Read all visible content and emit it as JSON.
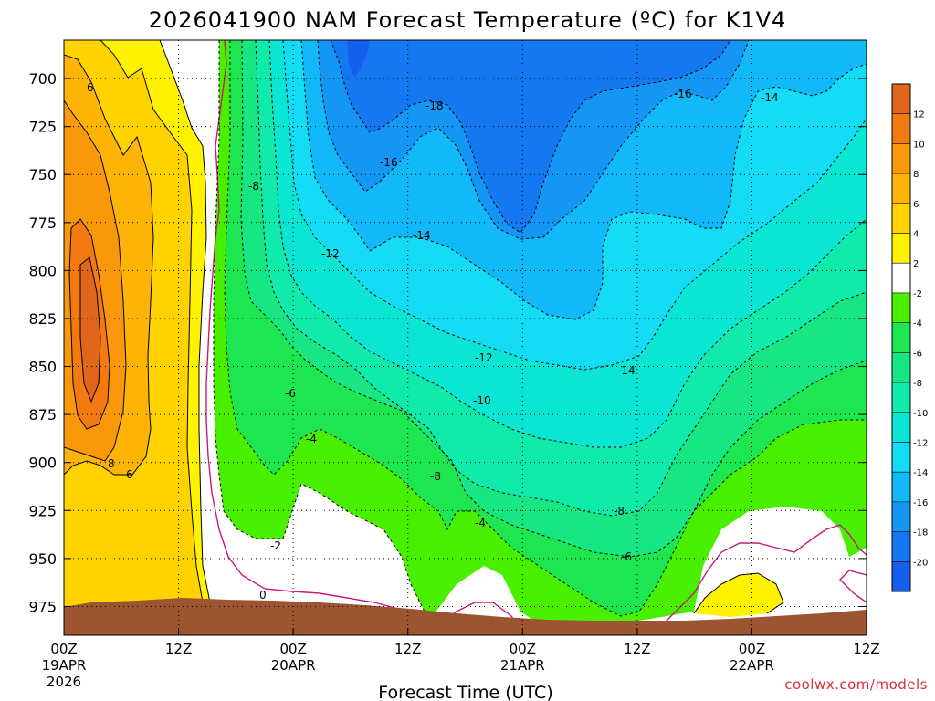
{
  "chart_data": {
    "type": "heatmap",
    "title": "2026041900 NAM Forecast Temperature (ºC) for K1V4",
    "xlabel": "Forecast Time (UTC)",
    "ylabel": "",
    "credit": "coolwx.com/models",
    "x_ticks": [
      {
        "hour": 0,
        "line1": "00Z",
        "line2": "19APR",
        "line3": "2026"
      },
      {
        "hour": 12,
        "line1": "12Z",
        "line2": "",
        "line3": ""
      },
      {
        "hour": 24,
        "line1": "00Z",
        "line2": "20APR",
        "line3": ""
      },
      {
        "hour": 36,
        "line1": "12Z",
        "line2": "",
        "line3": ""
      },
      {
        "hour": 48,
        "line1": "00Z",
        "line2": "21APR",
        "line3": ""
      },
      {
        "hour": 60,
        "line1": "12Z",
        "line2": "",
        "line3": ""
      },
      {
        "hour": 72,
        "line1": "00Z",
        "line2": "22APR",
        "line3": ""
      },
      {
        "hour": 84,
        "line1": "12Z",
        "line2": "",
        "line3": ""
      }
    ],
    "xlim_hours": [
      0,
      84
    ],
    "y_ticks": [
      700,
      725,
      750,
      775,
      800,
      825,
      850,
      875,
      900,
      925,
      950,
      975
    ],
    "ylim_hPa": [
      680,
      990
    ],
    "y_scale": "pressure",
    "grid": "dotted",
    "colorbar": {
      "position": "right",
      "labels": [
        "12",
        "10",
        "8",
        "6",
        "4",
        "2",
        "-2",
        "-4",
        "-6",
        "-8",
        "-10",
        "-12",
        "-14",
        "-16",
        "-18",
        "-20"
      ],
      "bins": [
        {
          "range": [
            12,
            14
          ],
          "color": "#e0661b"
        },
        {
          "range": [
            10,
            12
          ],
          "color": "#f27a10"
        },
        {
          "range": [
            8,
            10
          ],
          "color": "#f9980a"
        },
        {
          "range": [
            6,
            8
          ],
          "color": "#fdb407"
        },
        {
          "range": [
            4,
            6
          ],
          "color": "#ffd200"
        },
        {
          "range": [
            2,
            4
          ],
          "color": "#fff200"
        },
        {
          "range": [
            -2,
            2
          ],
          "color": "#ffffff"
        },
        {
          "range": [
            -4,
            -2
          ],
          "color": "#48f000"
        },
        {
          "range": [
            -6,
            -4
          ],
          "color": "#1ee650"
        },
        {
          "range": [
            -8,
            -6
          ],
          "color": "#18e682"
        },
        {
          "range": [
            -10,
            -8
          ],
          "color": "#10eaab"
        },
        {
          "range": [
            -12,
            -10
          ],
          "color": "#0ae6d2"
        },
        {
          "range": [
            -14,
            -12
          ],
          "color": "#14dcf5"
        },
        {
          "range": [
            -16,
            -14
          ],
          "color": "#12b9f8"
        },
        {
          "range": [
            -18,
            -16
          ],
          "color": "#1496f5"
        },
        {
          "range": [
            -20,
            -18
          ],
          "color": "#1478f0"
        },
        {
          "range": [
            -22,
            -20
          ],
          "color": "#1460ec"
        }
      ]
    },
    "contour_labels": [
      "6",
      "8",
      "6",
      "-8",
      "-18",
      "-16",
      "-14",
      "-16",
      "-14",
      "-12",
      "-12",
      "-10",
      "-14",
      "-6",
      "-4",
      "-8",
      "-8",
      "-4",
      "-6",
      "-2",
      "0"
    ],
    "terrain_color": "#9c5530",
    "zero_line_color": "#c8187a"
  }
}
